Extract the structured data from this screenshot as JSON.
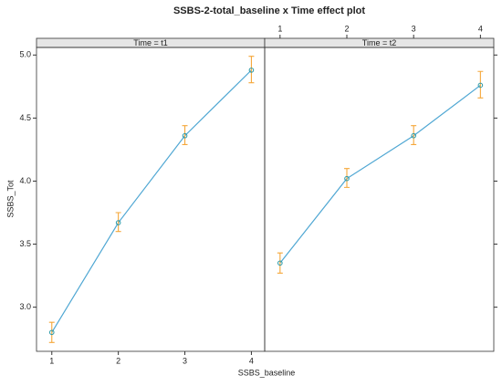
{
  "chart_data": {
    "type": "line",
    "title": "SSBS-2-total_baseline x Time effect plot",
    "xlabel": "SSBS_baseline",
    "ylabel": "SSBS_Tot",
    "xlim": [
      0.77,
      4.2
    ],
    "ylim": [
      2.65,
      5.06
    ],
    "xticks": [
      1,
      2,
      3,
      4
    ],
    "yticks": [
      {
        "value": 3,
        "label": "3.0"
      },
      {
        "value": 3.5,
        "label": "3.5"
      },
      {
        "value": 4,
        "label": "4.0"
      },
      {
        "value": 4.5,
        "label": "4.5"
      },
      {
        "value": 5,
        "label": "5.0"
      }
    ],
    "color": "#4fa7d3",
    "error_color": "#f5a73a",
    "panels": [
      {
        "strip": "Time = t1",
        "x": [
          1,
          2,
          3,
          4
        ],
        "values": [
          2.8,
          3.67,
          4.36,
          4.88
        ],
        "lower": [
          2.72,
          3.6,
          4.29,
          4.78
        ],
        "upper": [
          2.88,
          3.75,
          4.44,
          4.99
        ]
      },
      {
        "strip": "Time = t2",
        "x": [
          1,
          2,
          3,
          4
        ],
        "values": [
          3.35,
          4.02,
          4.36,
          4.76
        ],
        "lower": [
          3.27,
          3.95,
          4.29,
          4.66
        ],
        "upper": [
          3.43,
          4.1,
          4.44,
          4.87
        ]
      }
    ]
  }
}
